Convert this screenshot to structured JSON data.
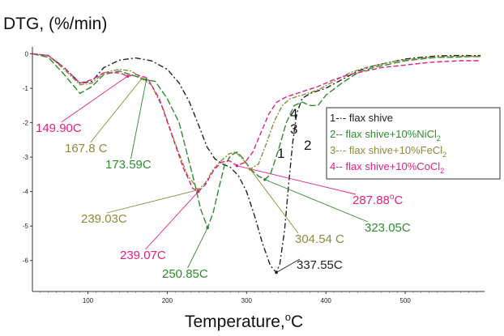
{
  "chart_data": {
    "type": "line",
    "ylabel": "DTG, (%/min)",
    "xlabel": "Temperature,",
    "xlabel_sup": "o",
    "xlabel_suffix": "C",
    "xlim": [
      30,
      600
    ],
    "ylim": [
      -6.9,
      0.2
    ],
    "x_ticks": [
      100,
      200,
      300,
      400,
      500
    ],
    "y_ticks": [
      0,
      -1,
      -2,
      -3,
      -4,
      -5,
      -6
    ],
    "grid": false,
    "legend_position": "right",
    "series": [
      {
        "name": "flax shive",
        "number": "1",
        "legend_prefix": "1-·-",
        "legend_text": "flax shive",
        "color": "#222222",
        "dash": "7,3,2,3",
        "points": [
          [
            30,
            0
          ],
          [
            50,
            -0.05
          ],
          [
            70,
            -0.4
          ],
          [
            90,
            -0.85
          ],
          [
            105,
            -0.8
          ],
          [
            120,
            -0.4
          ],
          [
            140,
            -0.18
          ],
          [
            160,
            -0.12
          ],
          [
            180,
            -0.2
          ],
          [
            200,
            -0.45
          ],
          [
            215,
            -0.85
          ],
          [
            228,
            -1.4
          ],
          [
            240,
            -2.1
          ],
          [
            250,
            -2.7
          ],
          [
            260,
            -3.05
          ],
          [
            270,
            -3.2
          ],
          [
            280,
            -3.3
          ],
          [
            290,
            -3.55
          ],
          [
            300,
            -4.0
          ],
          [
            310,
            -4.7
          ],
          [
            320,
            -5.5
          ],
          [
            330,
            -6.15
          ],
          [
            337.55,
            -6.35
          ],
          [
            342,
            -6.1
          ],
          [
            348,
            -5.1
          ],
          [
            353,
            -3.8
          ],
          [
            358,
            -2.6
          ],
          [
            363,
            -1.75
          ],
          [
            370,
            -1.3
          ],
          [
            380,
            -1.15
          ],
          [
            400,
            -1.0
          ],
          [
            420,
            -0.75
          ],
          [
            440,
            -0.5
          ],
          [
            460,
            -0.35
          ],
          [
            480,
            -0.25
          ],
          [
            500,
            -0.15
          ],
          [
            520,
            -0.1
          ],
          [
            540,
            -0.06
          ],
          [
            560,
            -0.05
          ],
          [
            580,
            -0.05
          ],
          [
            595,
            -0.05
          ]
        ]
      },
      {
        "name": "flax shive+10%NiCl₂",
        "number": "2",
        "legend_prefix": "2--",
        "legend_text": "flax shive+10%NiCl",
        "legend_sub": "2",
        "color": "#2e8b2e",
        "dash": "8,3",
        "points": [
          [
            30,
            0
          ],
          [
            50,
            -0.1
          ],
          [
            70,
            -0.6
          ],
          [
            90,
            -1.15
          ],
          [
            105,
            -0.95
          ],
          [
            120,
            -0.6
          ],
          [
            140,
            -0.5
          ],
          [
            160,
            -0.65
          ],
          [
            173.59,
            -0.75
          ],
          [
            185,
            -0.8
          ],
          [
            200,
            -1.3
          ],
          [
            215,
            -2.0
          ],
          [
            225,
            -2.9
          ],
          [
            235,
            -3.8
          ],
          [
            242,
            -4.5
          ],
          [
            250.85,
            -5.05
          ],
          [
            258,
            -4.6
          ],
          [
            265,
            -3.9
          ],
          [
            272,
            -3.25
          ],
          [
            280,
            -2.95
          ],
          [
            288,
            -2.85
          ],
          [
            296,
            -3.05
          ],
          [
            305,
            -3.35
          ],
          [
            315,
            -3.55
          ],
          [
            323.05,
            -3.65
          ],
          [
            330,
            -3.5
          ],
          [
            340,
            -2.8
          ],
          [
            350,
            -2.0
          ],
          [
            360,
            -1.5
          ],
          [
            370,
            -1.4
          ],
          [
            380,
            -1.5
          ],
          [
            390,
            -1.5
          ],
          [
            400,
            -1.2
          ],
          [
            420,
            -0.85
          ],
          [
            440,
            -0.55
          ],
          [
            460,
            -0.4
          ],
          [
            480,
            -0.3
          ],
          [
            500,
            -0.2
          ],
          [
            520,
            -0.15
          ],
          [
            540,
            -0.1
          ],
          [
            560,
            -0.1
          ],
          [
            580,
            -0.08
          ],
          [
            595,
            -0.08
          ]
        ]
      },
      {
        "name": "flax shive+10%FeCl₂",
        "number": "3",
        "legend_prefix": "3-·-",
        "legend_text": "flax shive+10%FeCl",
        "legend_sub": "2",
        "color": "#8b8b3a",
        "dash": "6,2,2,2",
        "points": [
          [
            30,
            0
          ],
          [
            50,
            -0.05
          ],
          [
            70,
            -0.45
          ],
          [
            90,
            -0.9
          ],
          [
            105,
            -0.85
          ],
          [
            120,
            -0.55
          ],
          [
            140,
            -0.45
          ],
          [
            155,
            -0.5
          ],
          [
            167.8,
            -0.72
          ],
          [
            180,
            -0.9
          ],
          [
            195,
            -1.6
          ],
          [
            210,
            -2.6
          ],
          [
            225,
            -3.5
          ],
          [
            239.03,
            -3.95
          ],
          [
            248,
            -3.75
          ],
          [
            258,
            -3.35
          ],
          [
            268,
            -3.1
          ],
          [
            278,
            -2.9
          ],
          [
            286,
            -2.85
          ],
          [
            295,
            -3.05
          ],
          [
            304.54,
            -3.35
          ],
          [
            315,
            -3.2
          ],
          [
            325,
            -2.6
          ],
          [
            335,
            -1.95
          ],
          [
            345,
            -1.5
          ],
          [
            355,
            -1.3
          ],
          [
            370,
            -1.2
          ],
          [
            390,
            -1.05
          ],
          [
            410,
            -0.8
          ],
          [
            430,
            -0.55
          ],
          [
            450,
            -0.4
          ],
          [
            470,
            -0.3
          ],
          [
            490,
            -0.2
          ],
          [
            510,
            -0.15
          ],
          [
            530,
            -0.1
          ],
          [
            550,
            -0.08
          ],
          [
            570,
            -0.07
          ],
          [
            595,
            -0.07
          ]
        ]
      },
      {
        "name": "flax shive+10%CoCl₂",
        "number": "4",
        "legend_prefix": "4--",
        "legend_text": "flax shive+10%CoCl",
        "legend_sub": "2",
        "color": "#e0207f",
        "dash": "6,3",
        "points": [
          [
            30,
            0
          ],
          [
            50,
            -0.05
          ],
          [
            70,
            -0.4
          ],
          [
            90,
            -0.85
          ],
          [
            105,
            -0.75
          ],
          [
            120,
            -0.55
          ],
          [
            140,
            -0.55
          ],
          [
            149.9,
            -0.65
          ],
          [
            160,
            -0.6
          ],
          [
            175,
            -0.7
          ],
          [
            190,
            -1.3
          ],
          [
            205,
            -2.3
          ],
          [
            220,
            -3.3
          ],
          [
            232,
            -3.9
          ],
          [
            239.07,
            -4.0
          ],
          [
            248,
            -3.8
          ],
          [
            258,
            -3.4
          ],
          [
            268,
            -3.15
          ],
          [
            278,
            -3.1
          ],
          [
            287.88,
            -3.25
          ],
          [
            298,
            -3.15
          ],
          [
            308,
            -2.85
          ],
          [
            318,
            -2.3
          ],
          [
            328,
            -1.75
          ],
          [
            338,
            -1.4
          ],
          [
            350,
            -1.25
          ],
          [
            370,
            -1.1
          ],
          [
            390,
            -0.95
          ],
          [
            410,
            -0.75
          ],
          [
            430,
            -0.6
          ],
          [
            450,
            -0.5
          ],
          [
            470,
            -0.4
          ],
          [
            490,
            -0.35
          ],
          [
            510,
            -0.3
          ],
          [
            530,
            -0.25
          ],
          [
            550,
            -0.22
          ],
          [
            570,
            -0.2
          ],
          [
            595,
            -0.2
          ]
        ]
      }
    ],
    "annotations": [
      {
        "text": "149.90C",
        "color": "#e0207f",
        "point": [
          149.9,
          -0.65
        ],
        "label_anchor": [
          44,
          163
        ]
      },
      {
        "text": "167.8 C",
        "color": "#8b8b3a",
        "point": [
          167.8,
          -0.72
        ],
        "label_anchor": [
          80,
          188
        ]
      },
      {
        "text": "173.59C",
        "color": "#2e8b2e",
        "point": [
          173.59,
          -0.75
        ],
        "label_anchor": [
          130,
          208
        ]
      },
      {
        "text": "239.03C",
        "color": "#8b8b3a",
        "point": [
          239.03,
          -3.95
        ],
        "label_anchor": [
          100,
          275
        ]
      },
      {
        "text": "239.07C",
        "color": "#e0207f",
        "point": [
          239.07,
          -4.0
        ],
        "label_anchor": [
          148,
          320
        ]
      },
      {
        "text": "250.85C",
        "color": "#2e8b2e",
        "point": [
          250.85,
          -5.05
        ],
        "label_anchor": [
          200,
          343
        ]
      },
      {
        "text": "287.88",
        "text_sup": "o",
        "text_suffix": "C",
        "color": "#e0207f",
        "point": [
          287.88,
          -3.25
        ],
        "label_anchor": [
          435,
          252
        ]
      },
      {
        "text": "323.05C",
        "color": "#2e8b2e",
        "point": [
          323.05,
          -3.65
        ],
        "label_anchor": [
          450,
          286
        ]
      },
      {
        "text": "304.54 C",
        "color": "#8b8b3a",
        "point": [
          304.54,
          -3.35
        ],
        "label_anchor": [
          364,
          300
        ]
      },
      {
        "text": "337.55C",
        "color": "#222222",
        "point": [
          337.55,
          -6.35
        ],
        "label_anchor": [
          366,
          332
        ]
      }
    ]
  }
}
